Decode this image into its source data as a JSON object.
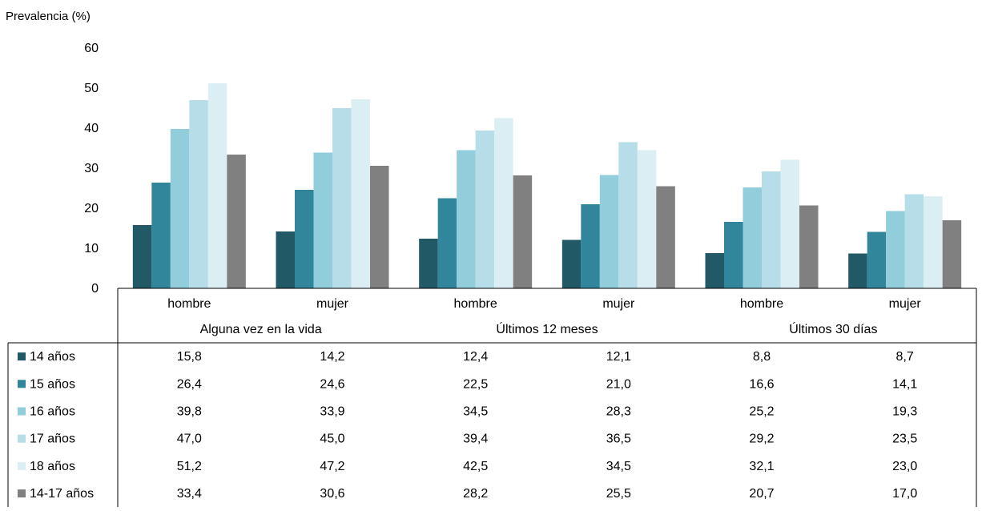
{
  "chart_data": {
    "type": "bar",
    "ylabel": "Prevalencia (%)",
    "ylim": [
      0,
      60
    ],
    "yticks": [
      "0",
      "10",
      "20",
      "30",
      "40",
      "50",
      "60"
    ],
    "groups": [
      "Alguna vez en la vida",
      "Últimos 12 meses",
      "Últimos 30 días"
    ],
    "categories": [
      "hombre",
      "mujer",
      "hombre",
      "mujer",
      "hombre",
      "mujer"
    ],
    "series": [
      {
        "name": "14 años",
        "color": "#225966",
        "values": [
          15.8,
          14.2,
          12.4,
          12.1,
          8.8,
          8.7
        ],
        "labels": [
          "15,8",
          "14,2",
          "12,4",
          "12,1",
          "8,8",
          "8,7"
        ]
      },
      {
        "name": "15 años",
        "color": "#31869b",
        "values": [
          26.4,
          24.6,
          22.5,
          21.0,
          16.6,
          14.1
        ],
        "labels": [
          "26,4",
          "24,6",
          "22,5",
          "21,0",
          "16,6",
          "14,1"
        ]
      },
      {
        "name": "16 años",
        "color": "#92cddc",
        "values": [
          39.8,
          33.9,
          34.5,
          28.3,
          25.2,
          19.3
        ],
        "labels": [
          "39,8",
          "33,9",
          "34,5",
          "28,3",
          "25,2",
          "19,3"
        ]
      },
      {
        "name": "17 años",
        "color": "#b7dee8",
        "values": [
          47.0,
          45.0,
          39.4,
          36.5,
          29.2,
          23.5
        ],
        "labels": [
          "47,0",
          "45,0",
          "39,4",
          "36,5",
          "29,2",
          "23,5"
        ]
      },
      {
        "name": "18 años",
        "color": "#daeef3",
        "values": [
          51.2,
          47.2,
          42.5,
          34.5,
          32.1,
          23.0
        ],
        "labels": [
          "51,2",
          "47,2",
          "42,5",
          "34,5",
          "32,1",
          "23,0"
        ]
      },
      {
        "name": "14-17 años",
        "color": "#808080",
        "values": [
          33.4,
          30.6,
          28.2,
          25.5,
          20.7,
          17.0
        ],
        "labels": [
          "33,4",
          "30,6",
          "28,2",
          "25,5",
          "20,7",
          "17,0"
        ]
      }
    ],
    "grid": false,
    "legend": "data-table"
  }
}
